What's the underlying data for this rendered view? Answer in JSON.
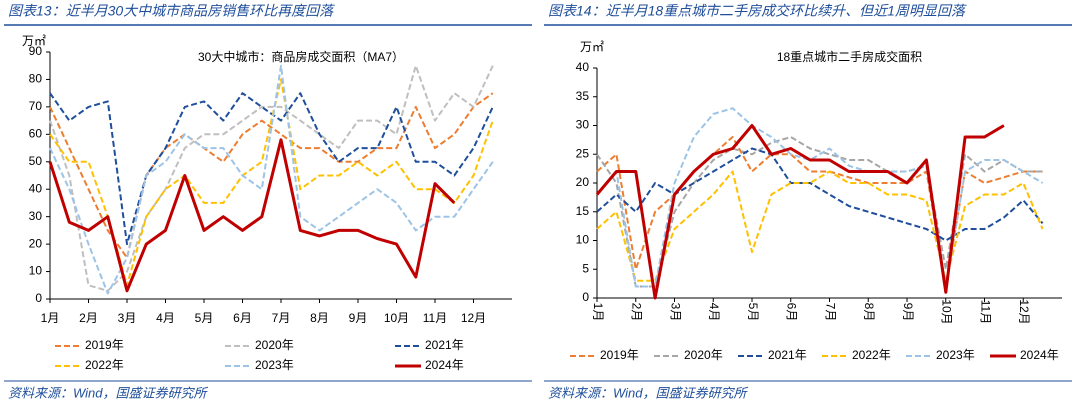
{
  "chart_data": [
    {
      "type": "line",
      "heading": "图表13：近半月30大中城市商品房销售环比再度回落",
      "source": "资料来源：Wind，国盛证券研究所",
      "title": "30大中城市：商品房成交面积（MA7）",
      "y_label": "万㎡",
      "x": [
        1,
        1.5,
        2,
        2.5,
        3,
        3.5,
        4,
        4.5,
        5,
        5.5,
        6,
        6.5,
        7,
        7.5,
        8,
        8.5,
        9,
        9.5,
        10,
        10.5,
        11,
        11.5,
        12,
        12.5
      ],
      "xlim": [
        1,
        13
      ],
      "xticks": [
        {
          "value": 1,
          "label": "1月"
        },
        {
          "value": 2,
          "label": "2月"
        },
        {
          "value": 3,
          "label": "3月"
        },
        {
          "value": 4,
          "label": "4月"
        },
        {
          "value": 5,
          "label": "5月"
        },
        {
          "value": 6,
          "label": "6月"
        },
        {
          "value": 7,
          "label": "7月"
        },
        {
          "value": 8,
          "label": "8月"
        },
        {
          "value": 9,
          "label": "9月"
        },
        {
          "value": 10,
          "label": "10月"
        },
        {
          "value": 11,
          "label": "11月"
        },
        {
          "value": 12,
          "label": "12月"
        }
      ],
      "ylim": [
        0,
        90
      ],
      "yticks": [
        0,
        10,
        20,
        30,
        40,
        50,
        60,
        70,
        80,
        90
      ],
      "rotate_xticks": false,
      "series": [
        {
          "name": "2019年",
          "color": "#ED7D31",
          "dashed": true,
          "values": [
            70,
            55,
            40,
            25,
            15,
            45,
            55,
            60,
            55,
            50,
            60,
            65,
            60,
            55,
            55,
            50,
            50,
            55,
            55,
            70,
            55,
            60,
            70,
            75
          ]
        },
        {
          "name": "2020年",
          "color": "#BFBFBF",
          "dashed": true,
          "values": [
            65,
            45,
            5,
            3,
            10,
            30,
            40,
            55,
            60,
            60,
            65,
            70,
            70,
            65,
            60,
            55,
            65,
            65,
            60,
            85,
            65,
            75,
            70,
            85
          ]
        },
        {
          "name": "2021年",
          "color": "#1F4E9A",
          "dashed": true,
          "values": [
            75,
            65,
            70,
            72,
            20,
            45,
            55,
            70,
            72,
            65,
            75,
            70,
            65,
            75,
            60,
            50,
            55,
            55,
            70,
            50,
            50,
            45,
            55,
            70
          ]
        },
        {
          "name": "2022年",
          "color": "#FFC000",
          "dashed": true,
          "values": [
            60,
            50,
            50,
            30,
            5,
            30,
            40,
            45,
            35,
            35,
            45,
            50,
            80,
            40,
            45,
            45,
            50,
            45,
            50,
            40,
            40,
            35,
            45,
            65
          ]
        },
        {
          "name": "2023年",
          "color": "#9DC3E6",
          "dashed": true,
          "values": [
            55,
            40,
            20,
            2,
            15,
            45,
            50,
            60,
            55,
            55,
            45,
            40,
            85,
            30,
            25,
            30,
            35,
            40,
            35,
            25,
            30,
            30,
            40,
            50
          ]
        },
        {
          "name": "2024年",
          "color": "#C00000",
          "dashed": false,
          "values": [
            50,
            28,
            25,
            30,
            3,
            20,
            25,
            45,
            25,
            30,
            25,
            30,
            58,
            25,
            23,
            25,
            25,
            22,
            20,
            8,
            42,
            35,
            null,
            null
          ]
        }
      ]
    },
    {
      "type": "line",
      "heading": "图表14：近半月18重点城市二手房成交环比续升、但近1周明显回落",
      "source": "资料来源：Wind，国盛证券研究所",
      "title": "18重点城市二手房成交面积",
      "y_label": "万㎡",
      "x": [
        1,
        1.5,
        2,
        2.5,
        3,
        3.5,
        4,
        4.5,
        5,
        5.5,
        6,
        6.5,
        7,
        7.5,
        8,
        8.5,
        9,
        9.5,
        10,
        10.5,
        11,
        11.5,
        12,
        12.5
      ],
      "xlim": [
        1,
        13
      ],
      "xticks": [
        {
          "value": 1,
          "label": "1月"
        },
        {
          "value": 2,
          "label": "2月"
        },
        {
          "value": 3,
          "label": "3月"
        },
        {
          "value": 4,
          "label": "4月"
        },
        {
          "value": 5,
          "label": "5月"
        },
        {
          "value": 6,
          "label": "6月"
        },
        {
          "value": 7,
          "label": "7月"
        },
        {
          "value": 8,
          "label": "8月"
        },
        {
          "value": 9,
          "label": "9月"
        },
        {
          "value": 10,
          "label": "10月"
        },
        {
          "value": 11,
          "label": "11月"
        },
        {
          "value": 12,
          "label": "12月"
        }
      ],
      "ylim": [
        0,
        40
      ],
      "yticks": [
        0,
        5,
        10,
        15,
        20,
        25,
        30,
        35,
        40
      ],
      "rotate_xticks": true,
      "series": [
        {
          "name": "2019年",
          "color": "#ED7D31",
          "dashed": true,
          "values": [
            22,
            25,
            5,
            15,
            18,
            22,
            25,
            28,
            22,
            25,
            25,
            22,
            22,
            21,
            20,
            20,
            20,
            22,
            2,
            22,
            20,
            21,
            22,
            22
          ]
        },
        {
          "name": "2020年",
          "color": "#A6A6A6",
          "dashed": true,
          "values": [
            25,
            20,
            2,
            2,
            15,
            20,
            24,
            26,
            25,
            27,
            28,
            26,
            25,
            24,
            24,
            22,
            22,
            23,
            5,
            25,
            22,
            24,
            22,
            22
          ]
        },
        {
          "name": "2021年",
          "color": "#1F4E9A",
          "dashed": true,
          "values": [
            15,
            18,
            15,
            20,
            18,
            20,
            22,
            24,
            26,
            25,
            20,
            20,
            18,
            16,
            15,
            14,
            13,
            12,
            10,
            12,
            12,
            14,
            17,
            13
          ]
        },
        {
          "name": "2022年",
          "color": "#FFC000",
          "dashed": true,
          "values": [
            12,
            15,
            3,
            3,
            12,
            15,
            18,
            22,
            8,
            18,
            20,
            20,
            22,
            20,
            20,
            18,
            18,
            17,
            3,
            16,
            18,
            18,
            20,
            12
          ]
        },
        {
          "name": "2023年",
          "color": "#9DC3E6",
          "dashed": true,
          "values": [
            18,
            22,
            2,
            2,
            20,
            28,
            32,
            33,
            30,
            28,
            25,
            24,
            26,
            23,
            22,
            22,
            22,
            23,
            2,
            22,
            24,
            24,
            22,
            20
          ]
        },
        {
          "name": "2024年",
          "color": "#C00000",
          "dashed": false,
          "values": [
            18,
            22,
            22,
            0,
            18,
            22,
            25,
            26,
            30,
            25,
            26,
            24,
            24,
            22,
            22,
            22,
            20,
            24,
            1,
            28,
            28,
            30,
            null,
            null
          ]
        }
      ]
    }
  ]
}
